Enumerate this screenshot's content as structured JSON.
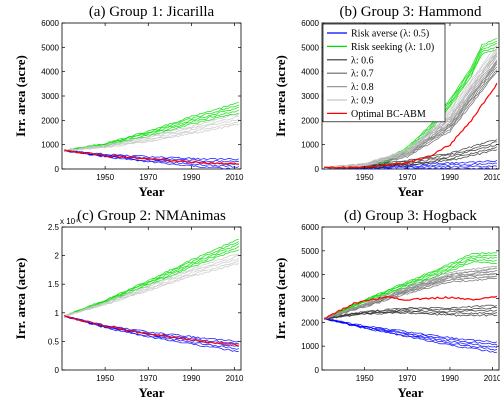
{
  "chart_data": [
    {
      "type": "line",
      "title": "(a) Group 1: Jicarilla",
      "xlabel": "Year",
      "ylabel": "Irr. area (acre)",
      "xlim": [
        1930,
        2013
      ],
      "ylim": [
        0,
        6000
      ],
      "xticks": [
        1950,
        1970,
        1990,
        2010
      ],
      "yticks": [
        0,
        1000,
        2000,
        3000,
        4000,
        5000,
        6000
      ],
      "series": [
        {
          "name": "Risk averse (λ: 0.5)",
          "color": "#0000ff",
          "x": [
            1931,
            1950,
            1970,
            1990,
            2012
          ],
          "values": [
            750,
            550,
            400,
            280,
            190
          ]
        },
        {
          "name": "Risk seeking (λ: 1.0)",
          "color": "#00dd00",
          "x": [
            1931,
            1950,
            1970,
            1990,
            2012
          ],
          "values": [
            750,
            1000,
            1450,
            2000,
            2520
          ]
        },
        {
          "name": "λ: 0.9",
          "color": "#c8c8c8",
          "x": [
            1931,
            1950,
            1970,
            1990,
            2012
          ],
          "values": [
            750,
            930,
            1230,
            1600,
            2050
          ]
        },
        {
          "name": "Optimal BC-ABM",
          "color": "#ff0000",
          "x": [
            1931,
            1950,
            1970,
            1990,
            2012
          ],
          "values": [
            760,
            560,
            410,
            290,
            200
          ]
        }
      ]
    },
    {
      "type": "line",
      "title": "(b) Group 3: Hammond",
      "xlabel": "Year",
      "ylabel": "Irr. area (acre)",
      "xlim": [
        1930,
        2013
      ],
      "ylim": [
        0,
        6000
      ],
      "xticks": [
        1950,
        1970,
        1990,
        2010
      ],
      "yticks": [
        0,
        1000,
        2000,
        3000,
        4000,
        5000,
        6000
      ],
      "legend": "top-left",
      "series": [
        {
          "name": "Risk averse (λ: 0.5)",
          "color": "#0000ff",
          "x": [
            1931,
            1970,
            2012
          ],
          "values": [
            40,
            70,
            120
          ]
        },
        {
          "name": "Risk seeking (λ: 1.0)",
          "color": "#00dd00",
          "x": [
            1931,
            1950,
            1960,
            1970,
            1980,
            1990,
            2000,
            2005,
            2012
          ],
          "values": [
            50,
            120,
            300,
            800,
            1600,
            2700,
            4000,
            4900,
            5150
          ]
        },
        {
          "name": "λ: 0.6",
          "color": "#303030",
          "x": [
            1931,
            1950,
            1970,
            1990,
            2012
          ],
          "values": [
            50,
            90,
            250,
            500,
            1000
          ]
        },
        {
          "name": "λ: 0.7",
          "color": "#666666",
          "x": [
            1931,
            1950,
            1970,
            1990,
            2012
          ],
          "values": [
            50,
            150,
            600,
            1700,
            4200
          ]
        },
        {
          "name": "λ: 0.8",
          "color": "#999999",
          "x": [
            1931,
            1950,
            1970,
            1990,
            2012
          ],
          "values": [
            50,
            160,
            650,
            2000,
            4600
          ]
        },
        {
          "name": "λ: 0.9",
          "color": "#c8c8c8",
          "x": [
            1931,
            1950,
            1970,
            1990,
            2012
          ],
          "values": [
            50,
            170,
            700,
            2300,
            4900
          ]
        },
        {
          "name": "Optimal BC-ABM",
          "color": "#ff0000",
          "x": [
            1931,
            1950,
            1970,
            1980,
            1990,
            2000,
            2012
          ],
          "values": [
            50,
            80,
            250,
            500,
            1000,
            2000,
            3500
          ]
        }
      ]
    },
    {
      "type": "line",
      "title": "(c) Group 2: NMAnimas",
      "xlabel": "Year",
      "ylabel": "Irr. area (acre)",
      "xlim": [
        1930,
        2013
      ],
      "ylim": [
        0,
        25000
      ],
      "yscale_label": "x 10⁴",
      "xticks": [
        1950,
        1970,
        1990,
        2010
      ],
      "yticks": [
        0,
        5000,
        10000,
        15000,
        20000,
        25000
      ],
      "ytick_labels": [
        "0",
        "0.5",
        "1",
        "1.5",
        "2",
        "2.5"
      ],
      "series": [
        {
          "name": "Risk averse (λ: 0.5)",
          "color": "#0000ff",
          "x": [
            1931,
            1950,
            1970,
            1990,
            2012
          ],
          "values": [
            9400,
            7600,
            6200,
            5200,
            4100
          ]
        },
        {
          "name": "Risk seeking (λ: 1.0)",
          "color": "#00dd00",
          "x": [
            1931,
            1950,
            1970,
            1990,
            2012
          ],
          "values": [
            9400,
            12000,
            15200,
            18600,
            22000
          ]
        },
        {
          "name": "λ: 0.9",
          "color": "#c8c8c8",
          "x": [
            1931,
            1950,
            1970,
            1990,
            2012
          ],
          "values": [
            9400,
            11600,
            14300,
            17000,
            19500
          ]
        },
        {
          "name": "Optimal BC-ABM",
          "color": "#ff0000",
          "x": [
            1931,
            1950,
            1970,
            1990,
            2012
          ],
          "values": [
            9400,
            7700,
            6300,
            5300,
            4300
          ]
        }
      ]
    },
    {
      "type": "line",
      "title": "(d) Group 3: Hogback",
      "xlabel": "Year",
      "ylabel": "Irr. area (acre)",
      "xlim": [
        1930,
        2013
      ],
      "ylim": [
        0,
        6000
      ],
      "xticks": [
        1950,
        1970,
        1990,
        2010
      ],
      "yticks": [
        0,
        1000,
        2000,
        3000,
        4000,
        5000,
        6000
      ],
      "series": [
        {
          "name": "Risk averse (λ: 0.5)",
          "color": "#0000ff",
          "x": [
            1931,
            1950,
            1970,
            1990,
            2012
          ],
          "values": [
            2150,
            1800,
            1500,
            1200,
            950
          ]
        },
        {
          "name": "Risk seeking (λ: 1.0)",
          "color": "#00dd00",
          "x": [
            1931,
            1950,
            1970,
            1990,
            2000,
            2012
          ],
          "values": [
            2150,
            2900,
            3600,
            4300,
            4700,
            4700
          ]
        },
        {
          "name": "λ: 0.6",
          "color": "#303030",
          "x": [
            1931,
            1950,
            1970,
            1990,
            2012
          ],
          "values": [
            2150,
            2400,
            2500,
            2450,
            2500
          ]
        },
        {
          "name": "λ: 0.7",
          "color": "#666666",
          "x": [
            1931,
            1950,
            1970,
            1990,
            2012
          ],
          "values": [
            2150,
            2700,
            3300,
            3850,
            4050
          ]
        },
        {
          "name": "λ: 0.8",
          "color": "#999999",
          "x": [
            1931,
            1950,
            1970,
            1990,
            2012
          ],
          "values": [
            2150,
            2750,
            3400,
            3950,
            4150
          ]
        },
        {
          "name": "Optimal BC-ABM",
          "color": "#ff0000",
          "x": [
            1931,
            1945,
            1960,
            1970,
            1980,
            1990,
            2000,
            2012
          ],
          "values": [
            2150,
            2800,
            3050,
            2950,
            3000,
            3050,
            2950,
            3100
          ]
        }
      ]
    }
  ],
  "legend": {
    "entries": [
      {
        "label": "Risk averse (λ: 0.5)",
        "color": "#0000ff"
      },
      {
        "label": "Risk seeking (λ: 1.0)",
        "color": "#00dd00"
      },
      {
        "label": "λ: 0.6",
        "color": "#303030"
      },
      {
        "label": "λ: 0.7",
        "color": "#666666"
      },
      {
        "label": "λ: 0.8",
        "color": "#999999"
      },
      {
        "label": "λ: 0.9",
        "color": "#c8c8c8"
      },
      {
        "label": "Optimal BC-ABM",
        "color": "#ff0000"
      }
    ]
  }
}
